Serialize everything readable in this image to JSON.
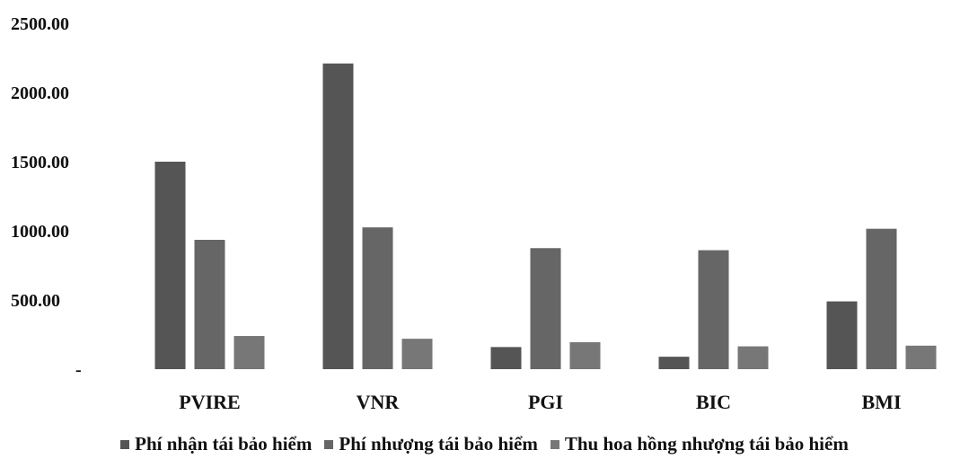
{
  "chart_data": {
    "type": "bar",
    "title": "",
    "xlabel": "",
    "ylabel": "",
    "categories": [
      "PVIRE",
      "VNR",
      "PGI",
      "BIC",
      "BMI"
    ],
    "series": [
      {
        "name": "Phí nhận tái bảo hiểm",
        "values": [
          1500,
          2210,
          160,
          90,
          490
        ],
        "color": "#555555"
      },
      {
        "name": "Phí nhượng tái bảo hiểm",
        "values": [
          935,
          1025,
          875,
          860,
          1015
        ],
        "color": "#666666"
      },
      {
        "name": "Thu hoa hồng nhượng tái bảo hiểm",
        "values": [
          240,
          220,
          195,
          165,
          170
        ],
        "color": "#777777"
      }
    ],
    "ylim": [
      0,
      2500
    ],
    "yticks": [
      "2500.00",
      "2000.00",
      "1500.00",
      "1000.00",
      "500.00",
      "-"
    ],
    "ytick_values": [
      2500,
      2000,
      1500,
      1000,
      500,
      0
    ],
    "grid": false,
    "legend_position": "bottom"
  }
}
